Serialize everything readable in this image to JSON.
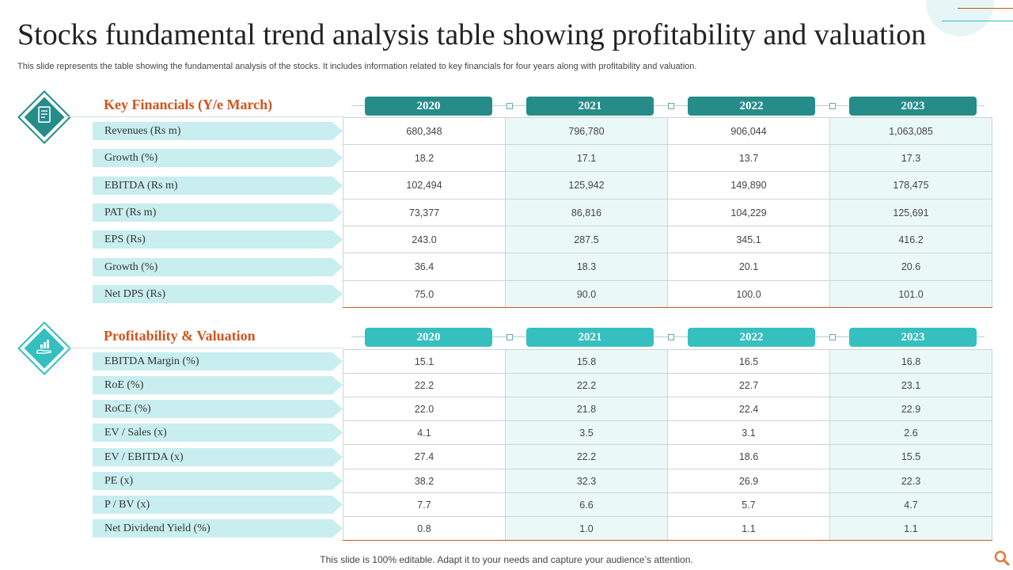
{
  "header": {
    "title": "Stocks fundamental trend analysis table showing profitability and valuation",
    "subtitle": "This slide represents the table showing the fundamental analysis of the stocks. It includes information related to key financials for four years along with profitability and valuation."
  },
  "footer": {
    "text": "This slide is 100% editable. Adapt it to your needs and capture your audience’s attention."
  },
  "colors": {
    "accent": "#d0541d",
    "teal_dark": "#258c8a",
    "teal_light": "#36bfbf",
    "label_bg": "#c9eeef",
    "cell_alt": "#ebf8f8"
  },
  "sections": [
    {
      "title": "Key Financials (Y/e March)",
      "icon": "document-icon",
      "years": [
        "2020",
        "2021",
        "2022",
        "2023"
      ],
      "rows": [
        {
          "label": "Revenues (Rs m)",
          "values": [
            "680,348",
            "796,780",
            "906,044",
            "1,063,085"
          ]
        },
        {
          "label": "Growth (%)",
          "values": [
            "18.2",
            "17.1",
            "13.7",
            "17.3"
          ]
        },
        {
          "label": "EBITDA (Rs m)",
          "values": [
            "102,494",
            "125,942",
            "149,890",
            "178,475"
          ]
        },
        {
          "label": "PAT (Rs m)",
          "values": [
            "73,377",
            "86,816",
            "104,229",
            "125,691"
          ]
        },
        {
          "label": "EPS (Rs)",
          "values": [
            "243.0",
            "287.5",
            "345.1",
            "416.2"
          ]
        },
        {
          "label": "Growth (%)",
          "values": [
            "36.4",
            "18.3",
            "20.1",
            "20.6"
          ]
        },
        {
          "label": "Net DPS (Rs)",
          "values": [
            "75.0",
            "90.0",
            "100.0",
            "101.0"
          ]
        }
      ]
    },
    {
      "title": "Profitability & Valuation",
      "icon": "growth-chart-hand-icon",
      "years": [
        "2020",
        "2021",
        "2022",
        "2023"
      ],
      "rows": [
        {
          "label": "EBITDA Margin (%)",
          "values": [
            "15.1",
            "15.8",
            "16.5",
            "16.8"
          ]
        },
        {
          "label": "RoE (%)",
          "values": [
            "22.2",
            "22.2",
            "22.7",
            "23.1"
          ]
        },
        {
          "label": "RoCE (%)",
          "values": [
            "22.0",
            "21.8",
            "22.4",
            "22.9"
          ]
        },
        {
          "label": "EV / Sales (x)",
          "values": [
            "4.1",
            "3.5",
            "3.1",
            "2.6"
          ]
        },
        {
          "label": "EV / EBITDA (x)",
          "values": [
            "27.4",
            "22.2",
            "18.6",
            "15.5"
          ]
        },
        {
          "label": "PE (x)",
          "values": [
            "38.2",
            "32.3",
            "26.9",
            "22.3"
          ]
        },
        {
          "label": "P / BV (x)",
          "values": [
            "7.7",
            "6.6",
            "5.7",
            "4.7"
          ]
        },
        {
          "label": "Net Dividend  Yield (%)",
          "values": [
            "0.8",
            "1.0",
            "1.1",
            "1.1"
          ]
        }
      ]
    }
  ]
}
